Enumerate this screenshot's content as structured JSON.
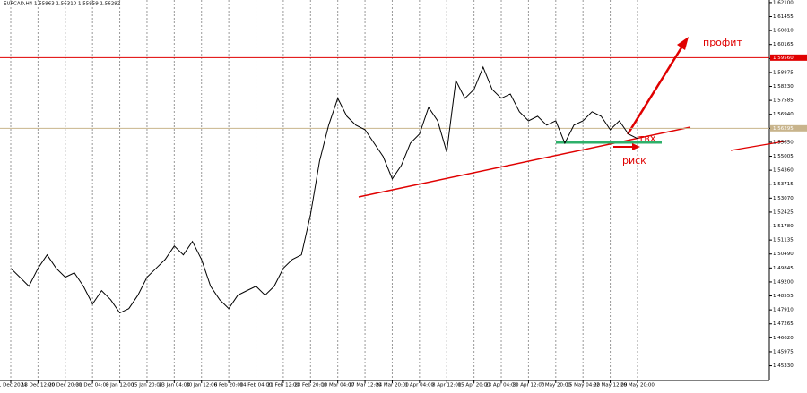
{
  "chart_data": {
    "type": "line",
    "title": "EURCAD,H4  1.55963 1.56310 1.55959 1.56292",
    "categories": [
      "11 Dec 2024",
      null,
      null,
      "13 Dec 12:00",
      null,
      null,
      "20 Dec 20:00",
      null,
      null,
      "31 Dec 04:00",
      null,
      null,
      "8 Jan 12:00",
      null,
      null,
      "15 Jan 20:00",
      null,
      null,
      "23 Jan 04:00",
      null,
      null,
      "30 Jan 12:00",
      null,
      null,
      "6 Feb 20:00",
      null,
      null,
      "14 Feb 04:00",
      null,
      null,
      "21 Feb 12:00",
      null,
      null,
      "28 Feb 20:00",
      null,
      null,
      "10 Mar 04:00",
      null,
      null,
      "17 Mar 12:00",
      null,
      null,
      "24 Mar 20:00",
      null,
      null,
      "1 Apr 04:00",
      null,
      null,
      "8 Apr 12:00",
      null,
      null,
      "15 Apr 20:00",
      null,
      null,
      "23 Apr 04:00",
      null,
      null,
      "30 Apr 12:00",
      null,
      null,
      "7 May 20:00",
      null,
      null,
      "15 May 04:00",
      null,
      null,
      "22 May 12:00",
      null,
      null,
      "29 May 20:00"
    ],
    "values": [
      1.4983,
      1.4942,
      1.49,
      1.4983,
      1.5045,
      1.4983,
      1.4942,
      1.4962,
      1.49,
      1.4818,
      1.488,
      1.4838,
      1.4777,
      1.4797,
      1.4859,
      1.4942,
      1.4983,
      1.5024,
      1.5086,
      1.5045,
      1.5107,
      1.5024,
      1.49,
      1.4838,
      1.4797,
      1.4859,
      1.488,
      1.49,
      1.4859,
      1.49,
      1.4983,
      1.5024,
      1.5045,
      1.5231,
      1.5479,
      1.5644,
      1.5768,
      1.5685,
      1.5644,
      1.5623,
      1.5561,
      1.5499,
      1.5396,
      1.5458,
      1.5561,
      1.5603,
      1.5726,
      1.5664,
      1.552,
      1.585,
      1.5768,
      1.5809,
      1.5912,
      1.5809,
      1.5768,
      1.5788,
      1.5706,
      1.5664,
      1.5685,
      1.5644,
      1.5664,
      1.5561,
      1.5644,
      1.5664,
      1.5706,
      1.5685,
      1.5623,
      1.5664,
      1.5603,
      1.5582
    ],
    "color": "#000000",
    "ylim": [
      1.4465,
      1.6222
    ],
    "yticks": [
      {
        "value": 1.4533,
        "label": "1.45330"
      },
      1.45975,
      {
        "value": 1.4662,
        "label": "1.46620"
      },
      1.47265,
      {
        "value": 1.4791,
        "label": "1.47910"
      },
      1.48555,
      {
        "value": 1.492,
        "label": "1.49200"
      },
      1.49845,
      {
        "value": 1.5049,
        "label": "1.50490"
      },
      1.51135,
      {
        "value": 1.5178,
        "label": "1.51780"
      },
      1.52425,
      {
        "value": 1.5307,
        "label": "1.53070"
      },
      1.53715,
      {
        "value": 1.5436,
        "label": "1.54360"
      },
      1.55005,
      {
        "value": 1.5565,
        "label": "1.55650"
      },
      1.56295,
      {
        "value": 1.5694,
        "label": "1.56940"
      },
      1.57585,
      {
        "value": 1.5823,
        "label": "1.58230"
      },
      1.58875,
      {
        "value": 1.5952,
        "label": "1.59520"
      },
      1.60165,
      {
        "value": 1.6081,
        "label": "1.60810"
      },
      1.61455,
      {
        "value": 1.621,
        "label": "1.62100"
      }
    ],
    "grid": "vertical",
    "levels": [
      {
        "value": 1.5956,
        "label": "1.59560",
        "color": "#e00000"
      },
      {
        "value": 1.56295,
        "color": "#c8b48c"
      }
    ],
    "annotations": [
      "профит",
      "твх",
      "риск"
    ]
  }
}
